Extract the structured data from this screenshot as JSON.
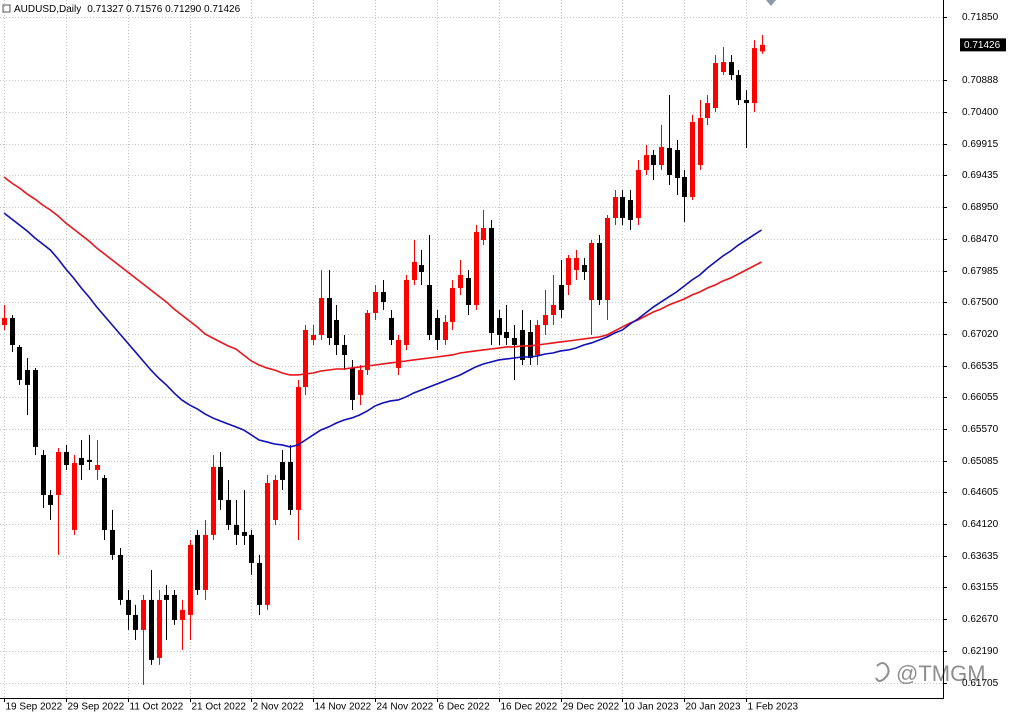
{
  "chart_data": {
    "type": "candlestick",
    "title": "AUDUSD,Daily",
    "title_ohlc": "0.71327 0.71576 0.71290 0.71426",
    "watermark": "@TMGM",
    "up_color": "#ff0000",
    "down_color": "#000000",
    "grid": true,
    "ylim": [
      0.6147,
      0.7211
    ],
    "yticks": [
      {
        "value": 0.7185,
        "label": "0.71850"
      },
      0.70888,
      {
        "value": 0.704,
        "label": "0.70400"
      },
      0.69915,
      0.69435,
      {
        "value": 0.6895,
        "label": "0.68950"
      },
      {
        "value": 0.6847,
        "label": "0.68470"
      },
      0.67985,
      {
        "value": 0.675,
        "label": "0.67500"
      },
      {
        "value": 0.6702,
        "label": "0.67020"
      },
      0.66535,
      0.66055,
      {
        "value": 0.6557,
        "label": "0.65570"
      },
      0.65085,
      0.64605,
      {
        "value": 0.6412,
        "label": "0.64120"
      },
      0.63635,
      0.63155,
      {
        "value": 0.6267,
        "label": "0.62670"
      },
      {
        "value": 0.6219,
        "label": "0.62190"
      },
      0.61705
    ],
    "last_price": {
      "value": 0.71426,
      "label": "0.71426"
    },
    "categories": [
      "19 Sep 2022",
      null,
      null,
      null,
      null,
      null,
      null,
      null,
      "29 Sep 2022",
      null,
      null,
      null,
      null,
      null,
      null,
      null,
      "11 Oct 2022",
      null,
      null,
      null,
      null,
      null,
      null,
      null,
      "21 Oct 2022",
      null,
      null,
      null,
      null,
      null,
      null,
      null,
      "2 Nov 2022",
      null,
      null,
      null,
      null,
      null,
      null,
      null,
      "14 Nov 2022",
      null,
      null,
      null,
      null,
      null,
      null,
      null,
      "24 Nov 2022",
      null,
      null,
      null,
      null,
      null,
      null,
      null,
      "6 Dec 2022",
      null,
      null,
      null,
      null,
      null,
      null,
      null,
      "16 Dec 2022",
      null,
      null,
      null,
      null,
      null,
      null,
      null,
      "29 Dec 2022",
      null,
      null,
      null,
      null,
      null,
      null,
      null,
      "10 Jan 2023",
      null,
      null,
      null,
      null,
      null,
      null,
      null,
      "20 Jan 2023",
      null,
      null,
      null,
      null,
      null,
      null,
      null,
      "1 Feb 2023",
      null,
      null
    ],
    "open": [
      0.67156,
      0.67263,
      0.66821,
      0.6647,
      0.6647,
      0.65175,
      0.64565,
      0.64565,
      0.65221,
      0.64032,
      0.65129,
      0.65099,
      0.64946,
      0.64824,
      0.64032,
      0.63651,
      0.62965,
      0.62736,
      0.62508,
      0.62965,
      0.62081,
      0.63041,
      0.63041,
      0.6266,
      0.62736,
      0.63956,
      0.63117,
      0.63956,
      0.64992,
      0.64489,
      0.64108,
      0.64001,
      0.63956,
      0.63529,
      0.62889,
      0.64184,
      0.65068,
      0.65068,
      0.64337,
      0.66211,
      0.66927,
      0.67003,
      0.67567,
      0.67232,
      0.66851,
      0.66501,
      0.66089,
      0.6647,
      0.67339,
      0.67659,
      0.67263,
      0.66501,
      0.66851,
      0.67842,
      0.6807,
      0.67766,
      0.67263,
      0.66927,
      0.67202,
      0.6772,
      0.67872,
      0.67461,
      0.68451,
      0.68634,
      0.67263,
      0.67049,
      0.66958,
      0.6708,
      0.67049,
      0.66699,
      0.67156,
      0.67308,
      0.67766,
      0.67766,
      0.67994,
      0.6807,
      0.67537,
      0.68406,
      0.67537,
      0.68787,
      0.69107,
      0.69061,
      0.68787,
      0.69518,
      0.69747,
      0.69594,
      0.69854,
      0.69823,
      0.69412,
      0.69107,
      0.69594,
      0.70311,
      0.70463,
      0.71012,
      0.71164,
      0.70966,
      0.70585,
      0.70539,
      0.71327
    ],
    "high": [
      0.67461,
      0.67308,
      0.66851,
      0.66653,
      0.66501,
      0.65251,
      0.64641,
      0.65281,
      0.65327,
      0.65175,
      0.65403,
      0.6548,
      0.65403,
      0.6487,
      0.64337,
      0.63757,
      0.63117,
      0.62889,
      0.63041,
      0.63422,
      0.63117,
      0.63194,
      0.63117,
      0.62965,
      0.63879,
      0.64032,
      0.64184,
      0.65175,
      0.65221,
      0.64794,
      0.64489,
      0.64641,
      0.64032,
      0.63651,
      0.6487,
      0.6487,
      0.65251,
      0.65327,
      0.66318,
      0.67156,
      0.67156,
      0.67994,
      0.67994,
      0.67461,
      0.67003,
      0.66623,
      0.66546,
      0.67385,
      0.67766,
      0.67842,
      0.67385,
      0.67003,
      0.67918,
      0.68451,
      0.68299,
      0.68528,
      0.67385,
      0.67308,
      0.67842,
      0.68147,
      0.67994,
      0.6868,
      0.68909,
      0.68756,
      0.67385,
      0.67461,
      0.67156,
      0.67385,
      0.67232,
      0.67232,
      0.6769,
      0.67918,
      0.68147,
      0.68223,
      0.68299,
      0.68177,
      0.68451,
      0.68528,
      0.68832,
      0.69213,
      0.69213,
      0.69213,
      0.69671,
      0.69899,
      0.69823,
      0.70204,
      0.70661,
      0.69975,
      0.69518,
      0.7036,
      0.70585,
      0.70661,
      0.71271,
      0.71393,
      0.71271,
      0.71042,
      0.70737,
      0.71499,
      0.71576
    ],
    "low": [
      0.6708,
      0.66745,
      0.66242,
      0.65784,
      0.65175,
      0.64367,
      0.64184,
      0.63651,
      0.64946,
      0.63956,
      0.64794,
      0.64946,
      0.64794,
      0.63879,
      0.63575,
      0.62889,
      0.62508,
      0.62355,
      0.6167,
      0.61974,
      0.61974,
      0.62355,
      0.62584,
      0.62203,
      0.62355,
      0.63041,
      0.62965,
      0.63879,
      0.64337,
      0.64032,
      0.63803,
      0.63803,
      0.63346,
      0.62736,
      0.62813,
      0.64108,
      0.64641,
      0.6426,
      0.63879,
      0.66089,
      0.66851,
      0.66927,
      0.66851,
      0.66699,
      0.6647,
      0.65861,
      0.65937,
      0.66394,
      0.67232,
      0.67385,
      0.66851,
      0.66394,
      0.66775,
      0.67766,
      0.67766,
      0.66927,
      0.66775,
      0.66851,
      0.6708,
      0.67613,
      0.67308,
      0.67385,
      0.68375,
      0.66851,
      0.66851,
      0.66851,
      0.66318,
      0.66546,
      0.66546,
      0.66546,
      0.67003,
      0.67156,
      0.67263,
      0.67613,
      0.67842,
      0.67842,
      0.67003,
      0.67461,
      0.67232,
      0.6868,
      0.6868,
      0.68604,
      0.6868,
      0.69442,
      0.69366,
      0.69518,
      0.6929,
      0.69137,
      0.68726,
      0.69061,
      0.69518,
      0.70204,
      0.70402,
      0.70966,
      0.7089,
      0.70509,
      0.69854,
      0.70402,
      0.7129
    ],
    "close": [
      0.67263,
      0.66851,
      0.66318,
      0.66242,
      0.65297,
      0.64565,
      0.64413,
      0.65221,
      0.65022,
      0.65053,
      0.65022,
      0.65068,
      0.65022,
      0.64032,
      0.63651,
      0.62965,
      0.62736,
      0.62508,
      0.62965,
      0.62051,
      0.62965,
      0.62965,
      0.6266,
      0.62813,
      0.63803,
      0.63117,
      0.63956,
      0.64992,
      0.64489,
      0.64108,
      0.63956,
      0.63941,
      0.63529,
      0.62889,
      0.64748,
      0.64794,
      0.64794,
      0.64337,
      0.66211,
      0.6708,
      0.67003,
      0.67567,
      0.66958,
      0.66851,
      0.66699,
      0.66013,
      0.6647,
      0.67339,
      0.67659,
      0.67507,
      0.66927,
      0.66927,
      0.67842,
      0.68116,
      0.67964,
      0.67003,
      0.66927,
      0.67202,
      0.6772,
      0.67918,
      0.67461,
      0.68573,
      0.68634,
      0.67034,
      0.67003,
      0.66958,
      0.66851,
      0.66623,
      0.66653,
      0.67156,
      0.67308,
      0.67461,
      0.67385,
      0.68177,
      0.68177,
      0.67964,
      0.68406,
      0.67537,
      0.68787,
      0.69107,
      0.68787,
      0.68756,
      0.69518,
      0.69747,
      0.69594,
      0.69869,
      0.69442,
      0.69396,
      0.69107,
      0.7025,
      0.70311,
      0.70539,
      0.71149,
      0.71164,
      0.70966,
      0.70585,
      0.70539,
      0.71377,
      0.71426
    ],
    "lines": [
      {
        "color": "#e8161c",
        "values": [
          0.69412,
          0.6932,
          0.69244,
          0.69152,
          0.69076,
          0.68985,
          0.68909,
          0.68817,
          0.6871,
          0.68619,
          0.68528,
          0.68436,
          0.68329,
          0.68238,
          0.68147,
          0.68055,
          0.67964,
          0.67872,
          0.67781,
          0.67689,
          0.67598,
          0.67507,
          0.674,
          0.67308,
          0.67217,
          0.67126,
          0.67019,
          0.66958,
          0.66897,
          0.66836,
          0.6679,
          0.66699,
          0.66607,
          0.66546,
          0.66501,
          0.6647,
          0.66424,
          0.66394,
          0.66394,
          0.66409,
          0.66424,
          0.66455,
          0.6647,
          0.66485,
          0.66485,
          0.66501,
          0.66516,
          0.66531,
          0.66546,
          0.66562,
          0.66577,
          0.66592,
          0.66607,
          0.66623,
          0.66638,
          0.66653,
          0.66668,
          0.66684,
          0.66699,
          0.66729,
          0.66745,
          0.6676,
          0.66775,
          0.6679,
          0.66805,
          0.66821,
          0.66821,
          0.66836,
          0.66836,
          0.66851,
          0.66866,
          0.66882,
          0.66897,
          0.66912,
          0.66927,
          0.66943,
          0.66958,
          0.66973,
          0.67004,
          0.67065,
          0.67126,
          0.67186,
          0.67232,
          0.67293,
          0.67354,
          0.674,
          0.67461,
          0.67507,
          0.67552,
          0.67613,
          0.67659,
          0.6772,
          0.67766,
          0.67827,
          0.67872,
          0.67933,
          0.67994,
          0.68055,
          0.68116
        ]
      },
      {
        "color": "#1010b8",
        "values": [
          0.68863,
          0.68771,
          0.6868,
          0.68589,
          0.68482,
          0.6839,
          0.68299,
          0.68162,
          0.68009,
          0.67872,
          0.6772,
          0.67583,
          0.6743,
          0.67293,
          0.67156,
          0.67019,
          0.66882,
          0.66745,
          0.66607,
          0.6647,
          0.66348,
          0.66242,
          0.6612,
          0.66013,
          0.65937,
          0.65876,
          0.658,
          0.65739,
          0.65693,
          0.65647,
          0.65602,
          0.65556,
          0.6548,
          0.65403,
          0.65373,
          0.65342,
          0.65327,
          0.65297,
          0.65327,
          0.65403,
          0.6548,
          0.65556,
          0.65602,
          0.65662,
          0.65708,
          0.65739,
          0.65784,
          0.65845,
          0.65922,
          0.65967,
          0.65998,
          0.66013,
          0.66059,
          0.6612,
          0.66165,
          0.66211,
          0.66257,
          0.66303,
          0.66348,
          0.66394,
          0.66455,
          0.66516,
          0.66562,
          0.66592,
          0.66623,
          0.66638,
          0.66653,
          0.66668,
          0.66668,
          0.66684,
          0.66714,
          0.66729,
          0.6676,
          0.66775,
          0.66805,
          0.66851,
          0.66882,
          0.66927,
          0.66973,
          0.67034,
          0.6708,
          0.67171,
          0.67247,
          0.67339,
          0.6743,
          0.67507,
          0.67583,
          0.67659,
          0.6775,
          0.67842,
          0.67918,
          0.68025,
          0.68116,
          0.68208,
          0.68284,
          0.68375,
          0.68451,
          0.68528,
          0.68604
        ]
      }
    ]
  }
}
